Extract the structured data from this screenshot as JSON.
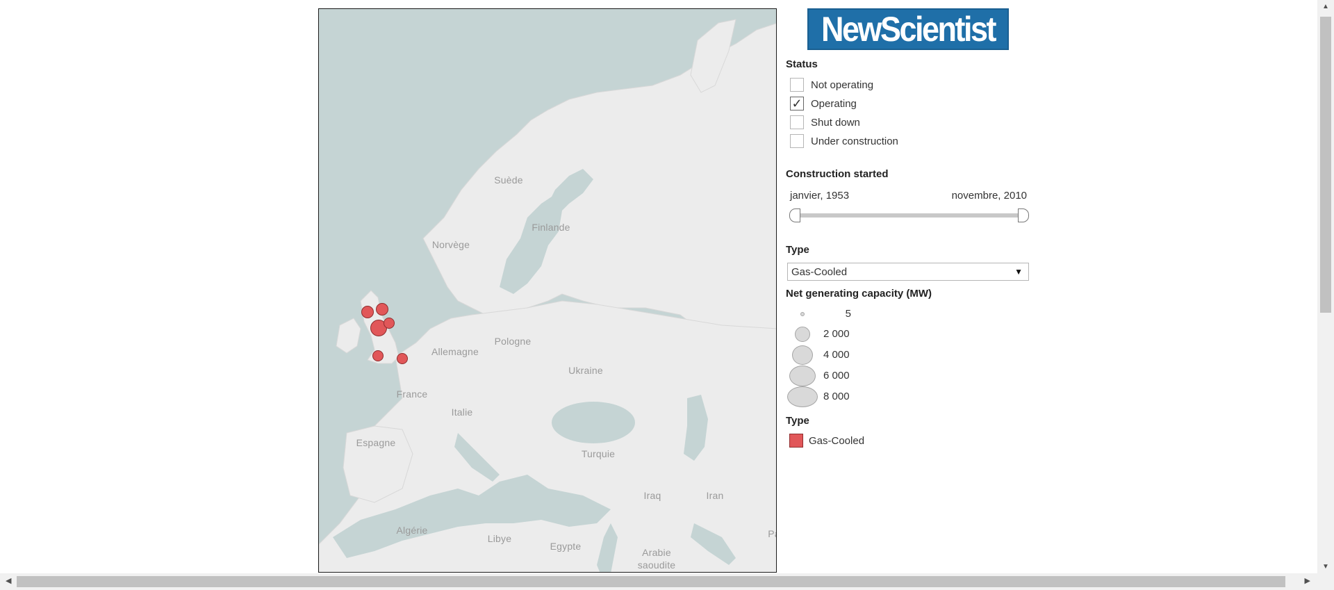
{
  "logo": {
    "text": "NewScientist"
  },
  "status_filter": {
    "title": "Status",
    "options": [
      {
        "label": "Not operating",
        "checked": false
      },
      {
        "label": "Operating",
        "checked": true
      },
      {
        "label": "Shut down",
        "checked": false
      },
      {
        "label": "Under construction",
        "checked": false
      }
    ]
  },
  "construction": {
    "title": "Construction started",
    "start_label": "janvier, 1953",
    "end_label": "novembre, 2010"
  },
  "type_filter": {
    "title": "Type",
    "selected": "Gas-Cooled"
  },
  "capacity_legend": {
    "title": "Net generating capacity (MW)",
    "items": [
      {
        "label": "5",
        "value": 5
      },
      {
        "label": "2 000",
        "value": 2000
      },
      {
        "label": "4 000",
        "value": 4000
      },
      {
        "label": "6 000",
        "value": 6000
      },
      {
        "label": "8 000",
        "value": 8000
      }
    ]
  },
  "type_legend": {
    "title": "Type",
    "items": [
      {
        "label": "Gas-Cooled",
        "color": "#e15759"
      }
    ]
  },
  "map": {
    "labels": {
      "suede": "Suède",
      "finlande": "Finlande",
      "norvege": "Norvège",
      "allemagne": "Allemagne",
      "pologne": "Pologne",
      "ukraine": "Ukraine",
      "france": "France",
      "italie": "Italie",
      "espagne": "Espagne",
      "turquie": "Turquie",
      "iraq": "Iraq",
      "iran": "Iran",
      "algerie": "Algérie",
      "libye": "Libye",
      "egypte": "Egypte",
      "arabie": "Arabie",
      "saoudite": "saoudite",
      "pa": "Pa"
    },
    "colors": {
      "water": "#c5d4d4",
      "land": "#ececec",
      "plant": "#e15759"
    }
  }
}
